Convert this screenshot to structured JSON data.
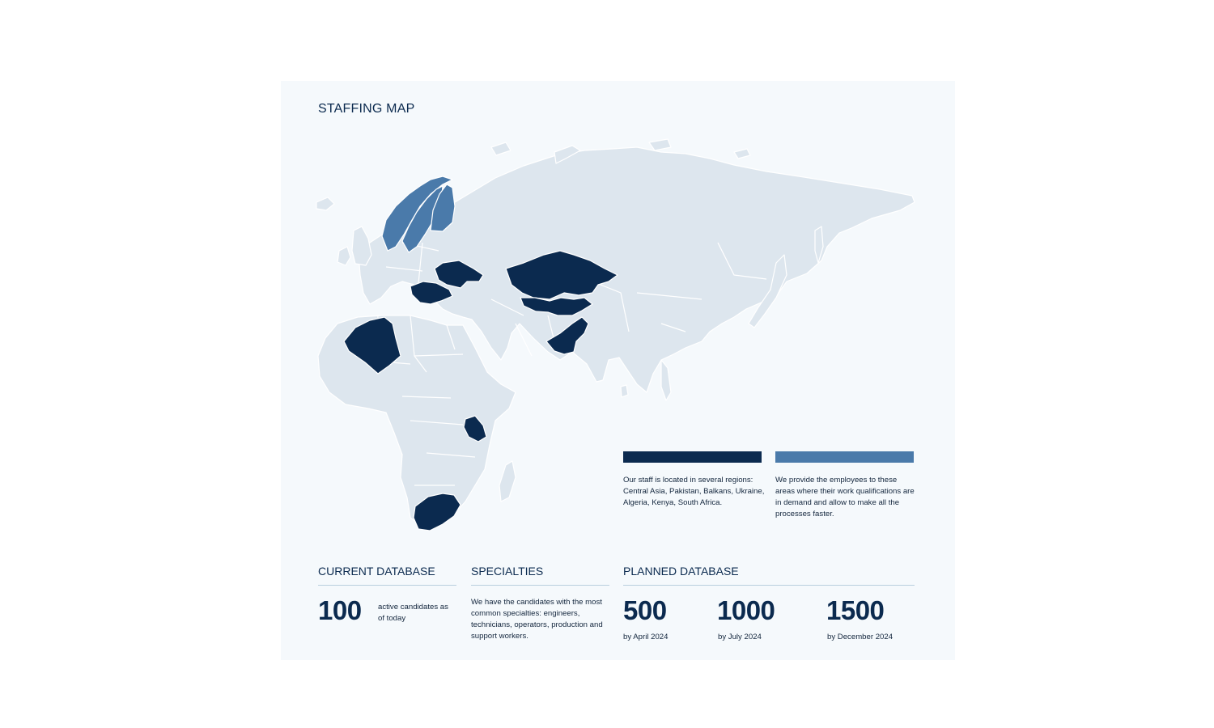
{
  "title": "STAFFING MAP",
  "colors": {
    "card_bg": "#f5f9fc",
    "land": "#dde6ee",
    "borders": "#ffffff",
    "staff_regions": "#0b2a4f",
    "employment_regions": "#4a7aaa"
  },
  "legend": [
    {
      "color": "#0b2a4f",
      "text": "Our staff is located in several regions: Central Asia, Pakistan, Balkans, Ukraine, Algeria, Kenya, South Africa."
    },
    {
      "color": "#4a7aaa",
      "text": "We provide the employees to these areas where their work qualifications are in demand and allow to make all the processes faster."
    }
  ],
  "current_database": {
    "heading": "CURRENT DATABASE",
    "value": "100",
    "note": "active candidates as of today"
  },
  "specialties": {
    "heading": "SPECIALTIES",
    "text": "We have the candidates with the most common specialties: engineers, technicians, operators, production and support workers."
  },
  "planned_database": {
    "heading": "PLANNED DATABASE",
    "items": [
      {
        "value": "500",
        "label": "by April 2024"
      },
      {
        "value": "1000",
        "label": "by July 2024"
      },
      {
        "value": "1500",
        "label": "by December 2024"
      }
    ]
  }
}
